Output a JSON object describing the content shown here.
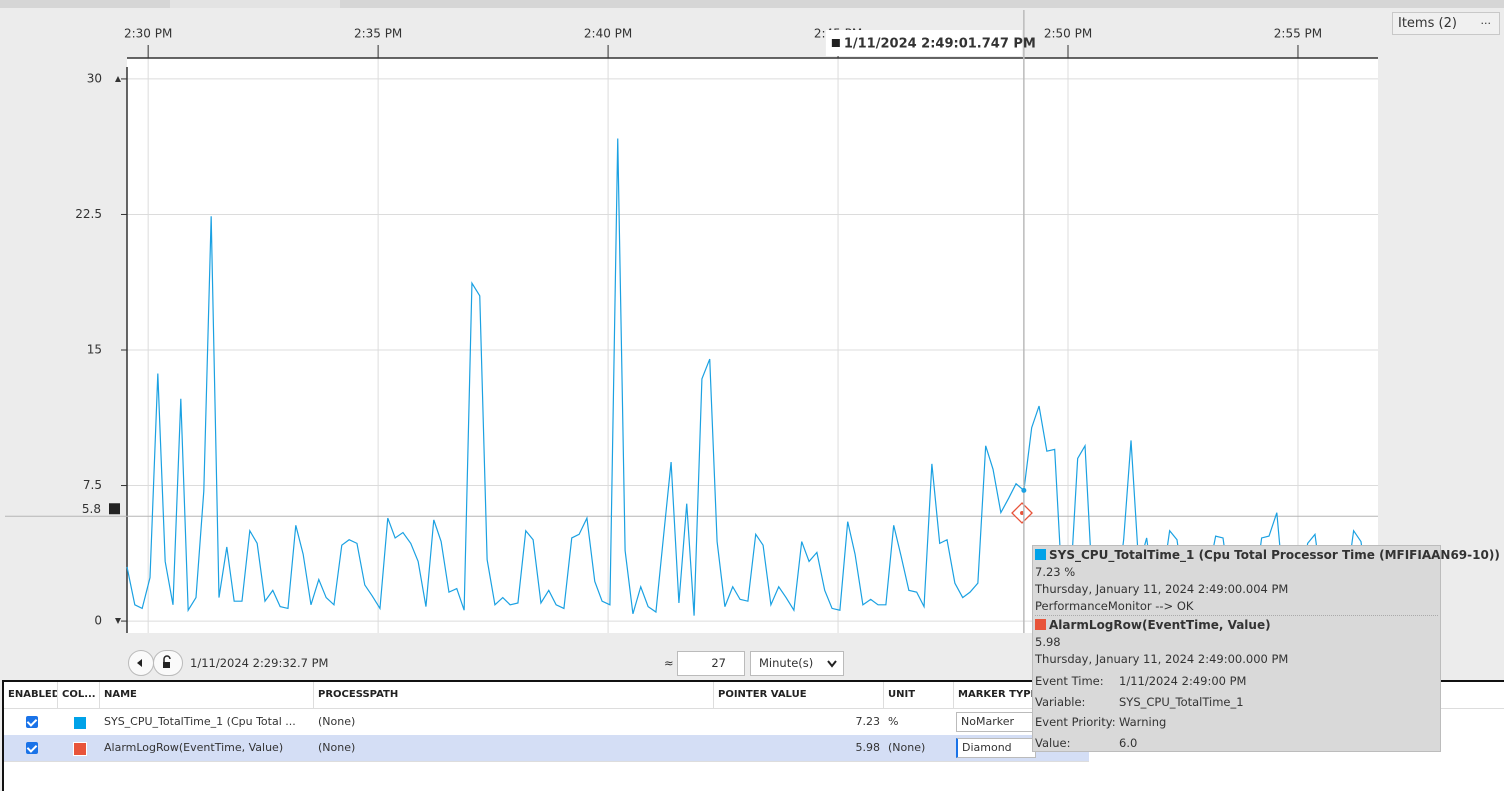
{
  "header": {
    "items": "Items (2)",
    "menu": "..."
  },
  "chart_data": {
    "type": "line",
    "x": [
      29.54,
      29.71,
      29.87,
      30.04,
      30.21,
      30.37,
      30.54,
      30.71,
      30.87,
      31.04,
      31.21,
      31.37,
      31.54,
      31.71,
      31.87,
      32.04,
      32.21,
      32.37,
      32.54,
      32.71,
      32.87,
      33.04,
      33.21,
      33.37,
      33.54,
      33.71,
      33.87,
      34.04,
      34.21,
      34.37,
      34.54,
      34.71,
      34.87,
      35.04,
      35.21,
      35.37,
      35.54,
      35.71,
      35.87,
      36.04,
      36.21,
      36.37,
      36.54,
      36.71,
      36.87,
      37.04,
      37.21,
      37.37,
      37.54,
      37.71,
      37.87,
      38.04,
      38.21,
      38.37,
      38.54,
      38.71,
      38.87,
      39.04,
      39.21,
      39.37,
      39.54,
      39.71,
      39.87,
      40.04,
      40.21,
      40.37,
      40.54,
      40.71,
      40.87,
      41.04,
      41.21,
      41.37,
      41.54,
      41.71,
      41.87,
      42.04,
      42.21,
      42.37,
      42.54,
      42.71,
      42.87,
      43.04,
      43.21,
      43.37,
      43.54,
      43.71,
      43.87,
      44.04,
      44.21,
      44.37,
      44.54,
      44.71,
      44.87,
      45.04,
      45.21,
      45.37,
      45.54,
      45.71,
      45.87,
      46.04,
      46.21,
      46.37,
      46.54,
      46.71,
      46.87,
      47.04,
      47.21,
      47.37,
      47.54,
      47.71,
      47.87,
      48.04,
      48.21,
      48.37,
      48.54,
      48.71,
      48.87,
      49.04,
      49.21,
      49.37,
      49.54,
      49.71,
      49.87,
      50.04,
      50.21,
      50.37,
      50.54,
      50.71,
      50.87,
      51.04,
      51.21,
      51.37,
      51.54,
      51.71,
      51.87,
      52.04,
      52.21,
      52.37,
      52.54,
      52.71,
      52.87,
      53.04,
      53.21,
      53.37,
      53.54,
      53.71,
      53.87,
      54.04,
      54.21,
      54.37,
      54.54,
      54.71,
      54.87,
      55.04,
      55.21,
      55.37,
      55.54,
      55.71,
      55.87,
      56.04,
      56.21,
      56.37,
      56.54,
      56.71
    ],
    "xlim": [
      29.54,
      56.74
    ],
    "xticks": [
      {
        "value": 30,
        "label": "2:30 PM"
      },
      {
        "value": 35,
        "label": "2:35 PM"
      },
      {
        "value": 40,
        "label": "2:40 PM"
      },
      {
        "value": 45,
        "label": "2:45 PM"
      },
      {
        "value": 50,
        "label": "2:50 PM"
      },
      {
        "value": 55,
        "label": "2:55 PM"
      }
    ],
    "ylim": [
      -0.66,
      30.66
    ],
    "yticks": [
      0,
      7.5,
      15,
      22.5,
      30
    ],
    "grid": true,
    "series": [
      {
        "name": "SYS_CPU_TotalTime_1 (Cpu Total Processor Time (MFIFIAAN69-10))",
        "color": "#1ba1e2",
        "values": [
          3.0,
          0.9,
          0.7,
          2.4,
          13.7,
          3.3,
          0.9,
          12.3,
          0.6,
          1.3,
          7.2,
          22.4,
          1.3,
          4.1,
          1.1,
          1.1,
          5.0,
          4.3,
          1.1,
          1.7,
          0.8,
          0.7,
          5.3,
          3.7,
          0.9,
          2.3,
          1.3,
          0.9,
          4.2,
          4.5,
          4.3,
          2.0,
          1.4,
          0.7,
          5.7,
          4.6,
          4.9,
          4.3,
          3.3,
          0.8,
          5.6,
          4.4,
          1.6,
          1.8,
          0.6,
          18.7,
          18.0,
          3.4,
          0.9,
          1.3,
          0.9,
          1.0,
          5.0,
          4.5,
          1.0,
          1.7,
          0.9,
          0.7,
          4.6,
          4.8,
          5.7,
          2.2,
          1.1,
          0.9,
          26.7,
          3.9,
          0.4,
          1.9,
          0.8,
          0.5,
          4.8,
          8.8,
          1.0,
          6.5,
          0.3,
          13.4,
          14.5,
          4.4,
          0.8,
          1.9,
          1.2,
          1.1,
          4.8,
          4.2,
          0.9,
          1.9,
          1.3,
          0.6,
          4.4,
          3.3,
          3.8,
          1.7,
          0.7,
          0.6,
          5.5,
          3.7,
          0.9,
          1.2,
          0.9,
          0.9,
          5.3,
          3.6,
          1.7,
          1.6,
          0.8,
          8.7,
          4.3,
          4.5,
          2.1,
          1.3,
          1.6,
          2.1,
          9.7,
          8.4,
          6.0,
          6.8,
          7.6,
          7.23,
          10.7,
          11.9,
          9.4,
          9.5,
          2.0,
          1.5,
          9.0,
          9.7,
          1.5,
          1.2,
          2.0,
          1.0,
          4.5,
          10.0,
          3.0,
          4.6,
          1.5,
          2.0,
          5.0,
          4.5,
          1.3,
          1.8,
          1.0,
          2.5,
          4.7,
          4.6,
          1.5,
          1.0,
          2.0,
          1.4,
          4.6,
          4.7,
          6.0,
          1.2,
          2.0,
          1.0,
          4.3,
          4.8,
          1.5,
          1.0,
          2.2,
          1.8,
          5.0,
          4.4,
          1.3,
          2.0
        ]
      },
      {
        "name": "AlarmLogRow(EventTime, Value)",
        "color": "#e8543a",
        "marker": "diamond",
        "x": [
          49.0
        ],
        "values": [
          5.98
        ]
      }
    ],
    "reference_line": 5.8,
    "cursor_label": "1/11/2024 2:49:01.747 PM"
  },
  "toolbar": {
    "start_time": "1/11/2024 2:29:32.7 PM",
    "approx": "≈",
    "duration": "27",
    "unit": "Minute(s)"
  },
  "table": {
    "columns": [
      "ENABLED",
      "COL...",
      "NAME",
      "PROCESSPATH",
      "POINTER VALUE",
      "UNIT",
      "MARKER TYPE"
    ],
    "rows": [
      [
        "SYS_CPU_TotalTime_1 (Cpu Total ...",
        "(None)",
        7.23,
        "%",
        "NoMarker"
      ],
      [
        "AlarmLogRow(EventTime, Value)",
        "(None)",
        5.98,
        "(None)",
        "Diamond"
      ]
    ]
  },
  "tooltip": {
    "series_value": "7.23 %",
    "series_time": "Thursday, January 11, 2024 2:49:00.004 PM",
    "series_status": "PerformanceMonitor --> OK",
    "alarm_value": "5.98",
    "alarm_time": "Thursday, January 11, 2024 2:49:00.000 PM",
    "fields": [
      [
        "Event Time:",
        "1/11/2024 2:49:00 PM"
      ],
      [
        "Variable:",
        "SYS_CPU_TotalTime_1"
      ],
      [
        "Event Priority:",
        "Warning"
      ],
      [
        "Value:",
        "6.0"
      ]
    ]
  }
}
